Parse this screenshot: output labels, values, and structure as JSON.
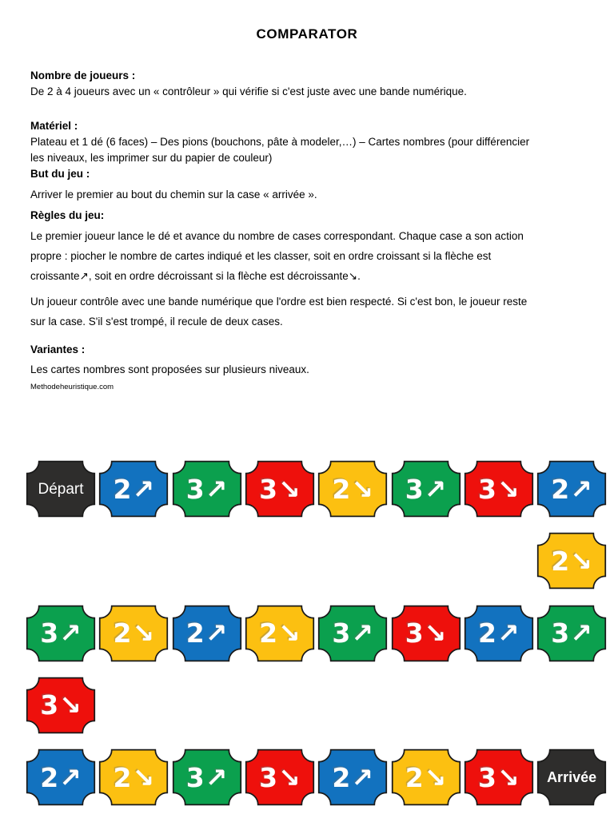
{
  "doc": {
    "title": "COMPARATOR",
    "sections": {
      "players": {
        "heading": "Nombre de joueurs :",
        "body": "De 2 à 4 joueurs avec un « contrôleur » qui vérifie si c'est juste avec une bande numérique."
      },
      "materiel": {
        "heading": "Matériel :",
        "body": "Plateau et 1 dé (6 faces) – Des pions (bouchons, pâte à modeler,…) – Cartes nombres (pour différencier\nles niveaux, les imprimer sur du papier de couleur)"
      },
      "but": {
        "heading": "But du jeu :",
        "body": "Arriver le premier au bout du chemin sur la case « arrivée »."
      },
      "regles": {
        "heading": "Règles du jeu:",
        "para1": "Le premier joueur lance le dé et avance du nombre de cases correspondant. Chaque case a son action\npropre : piocher le nombre de cartes indiqué et les classer, soit en ordre croissant si la flèche est\ncroissante↗, soit en ordre décroissant si la flèche est décroissante↘.",
        "para2": "Un joueur contrôle avec une bande numérique que l'ordre est bien respecté. Si c'est bon, le joueur reste\nsur la case. S'il s'est trompé, il recule de deux cases."
      },
      "variantes": {
        "heading": "Variantes :",
        "body": "Les cartes nombres sont proposées sur plusieurs niveaux."
      }
    },
    "source": "Methodeheuristique.com"
  },
  "board": {
    "start_label": "Départ",
    "finish_label": "Arrivée",
    "arrows": {
      "up": "↗",
      "down": "↘"
    },
    "colors": {
      "blue": "#1272bf",
      "green": "#0ba04e",
      "red": "#ee100c",
      "yellow": "#fcc011",
      "dark": "#2e2d2c",
      "outline": "#1a1a1a",
      "glyph": "#ffffff"
    },
    "tiles": [
      {
        "row": 0,
        "col": 0,
        "color": "dark",
        "label": "Départ"
      },
      {
        "row": 0,
        "col": 1,
        "color": "blue",
        "count": "2",
        "dir": "up"
      },
      {
        "row": 0,
        "col": 2,
        "color": "green",
        "count": "3",
        "dir": "up"
      },
      {
        "row": 0,
        "col": 3,
        "color": "red",
        "count": "3",
        "dir": "down"
      },
      {
        "row": 0,
        "col": 4,
        "color": "yellow",
        "count": "2",
        "dir": "down"
      },
      {
        "row": 0,
        "col": 5,
        "color": "green",
        "count": "3",
        "dir": "up"
      },
      {
        "row": 0,
        "col": 6,
        "color": "red",
        "count": "3",
        "dir": "down"
      },
      {
        "row": 0,
        "col": 7,
        "color": "blue",
        "count": "2",
        "dir": "up"
      },
      {
        "row": 1,
        "col": 7,
        "color": "yellow",
        "count": "2",
        "dir": "down"
      },
      {
        "row": 2,
        "col": 0,
        "color": "green",
        "count": "3",
        "dir": "up"
      },
      {
        "row": 2,
        "col": 1,
        "color": "yellow",
        "count": "2",
        "dir": "down"
      },
      {
        "row": 2,
        "col": 2,
        "color": "blue",
        "count": "2",
        "dir": "up"
      },
      {
        "row": 2,
        "col": 3,
        "color": "yellow",
        "count": "2",
        "dir": "down"
      },
      {
        "row": 2,
        "col": 4,
        "color": "green",
        "count": "3",
        "dir": "up"
      },
      {
        "row": 2,
        "col": 5,
        "color": "red",
        "count": "3",
        "dir": "down"
      },
      {
        "row": 2,
        "col": 6,
        "color": "blue",
        "count": "2",
        "dir": "up"
      },
      {
        "row": 2,
        "col": 7,
        "color": "green",
        "count": "3",
        "dir": "up"
      },
      {
        "row": 3,
        "col": 0,
        "color": "red",
        "count": "3",
        "dir": "down"
      },
      {
        "row": 4,
        "col": 0,
        "color": "blue",
        "count": "2",
        "dir": "up"
      },
      {
        "row": 4,
        "col": 1,
        "color": "yellow",
        "count": "2",
        "dir": "down"
      },
      {
        "row": 4,
        "col": 2,
        "color": "green",
        "count": "3",
        "dir": "up"
      },
      {
        "row": 4,
        "col": 3,
        "color": "red",
        "count": "3",
        "dir": "down"
      },
      {
        "row": 4,
        "col": 4,
        "color": "blue",
        "count": "2",
        "dir": "up"
      },
      {
        "row": 4,
        "col": 5,
        "color": "yellow",
        "count": "2",
        "dir": "down"
      },
      {
        "row": 4,
        "col": 6,
        "color": "red",
        "count": "3",
        "dir": "down"
      },
      {
        "row": 4,
        "col": 7,
        "color": "dark",
        "label": "Arrivée"
      }
    ]
  }
}
